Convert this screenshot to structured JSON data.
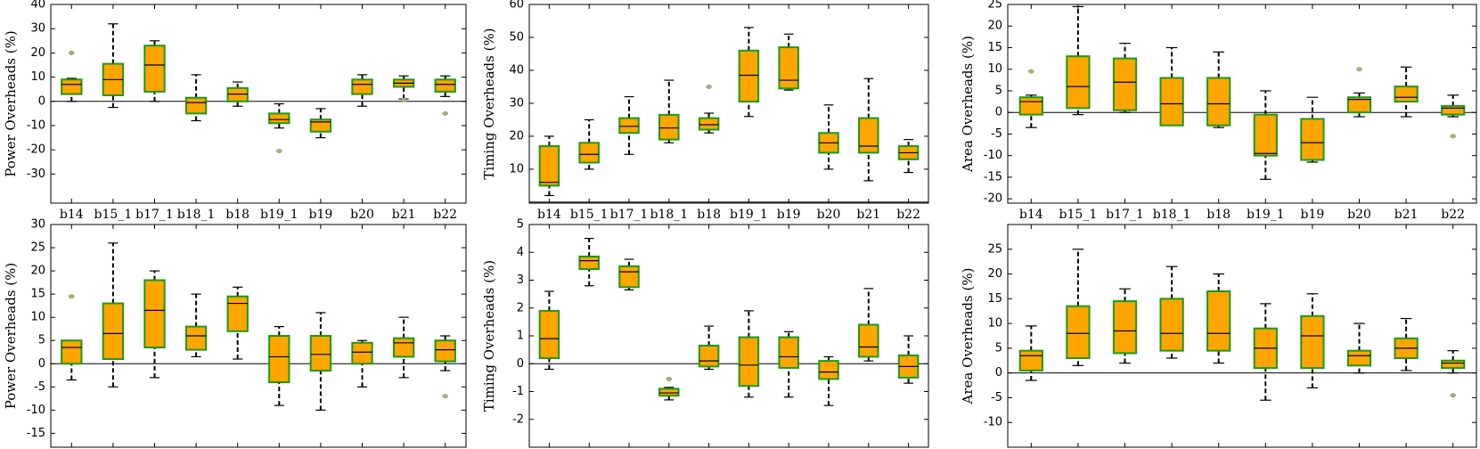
{
  "chart_data": [
    {
      "type": "box",
      "ylabel": "Power Overheads (%)",
      "ylim": [
        -42,
        40
      ],
      "yticks": [
        -30,
        -20,
        -10,
        0,
        10,
        20,
        30,
        40
      ],
      "reference_line": 0,
      "box_color": "#ffa500",
      "edge_color": "#1a9a1a",
      "outlier_color": "#b0b070",
      "categories": [
        "b14",
        "b15_1",
        "b17_1",
        "b18_1",
        "b18",
        "b19_1",
        "b19",
        "b20",
        "b21",
        "b22"
      ],
      "boxes": [
        {
          "min": 0,
          "q1": 3,
          "median": 7,
          "q3": 9,
          "max": 9.5,
          "outliers": [
            20
          ]
        },
        {
          "min": -2.5,
          "q1": 2.5,
          "median": 9,
          "q3": 15.5,
          "max": 32,
          "outliers": []
        },
        {
          "min": 0,
          "q1": 4,
          "median": 15,
          "q3": 23,
          "max": 25,
          "outliers": []
        },
        {
          "min": -8,
          "q1": -5,
          "median": -0.5,
          "q3": 1.5,
          "max": 11,
          "outliers": []
        },
        {
          "min": -2,
          "q1": 0,
          "median": 3,
          "q3": 5.5,
          "max": 8,
          "outliers": []
        },
        {
          "min": -11,
          "q1": -9,
          "median": -7.5,
          "q3": -5,
          "max": -1,
          "outliers": [
            -20.5
          ]
        },
        {
          "min": -15,
          "q1": -12.5,
          "median": -8.5,
          "q3": -7.5,
          "max": -3,
          "outliers": []
        },
        {
          "min": -2,
          "q1": 3,
          "median": 7,
          "q3": 9,
          "max": 11,
          "outliers": []
        },
        {
          "min": 1,
          "q1": 6,
          "median": 7.5,
          "q3": 9,
          "max": 10.5,
          "outliers": [
            0.5
          ]
        },
        {
          "min": 2,
          "q1": 4,
          "median": 7,
          "q3": 9,
          "max": 10.5,
          "outliers": [
            -5
          ]
        }
      ]
    },
    {
      "type": "box",
      "ylabel": "Timing Overheads (%)",
      "ylim": [
        -0.3,
        60
      ],
      "yticks": [
        10,
        20,
        30,
        40,
        50,
        60
      ],
      "reference_line": 0,
      "box_color": "#ffa500",
      "edge_color": "#1a9a1a",
      "outlier_color": "#b0b070",
      "categories": [
        "b14",
        "b15_1",
        "b17_1",
        "b18_1",
        "b18",
        "b19_1",
        "b19",
        "b20",
        "b21",
        "b22"
      ],
      "boxes": [
        {
          "min": 2,
          "q1": 5,
          "median": 6,
          "q3": 17,
          "max": 20,
          "outliers": []
        },
        {
          "min": 10,
          "q1": 12,
          "median": 14.5,
          "q3": 18,
          "max": 25,
          "outliers": []
        },
        {
          "min": 14.5,
          "q1": 21,
          "median": 23,
          "q3": 25.5,
          "max": 32,
          "outliers": []
        },
        {
          "min": 18,
          "q1": 19,
          "median": 22.5,
          "q3": 26.5,
          "max": 37,
          "outliers": []
        },
        {
          "min": 21,
          "q1": 22,
          "median": 23.5,
          "q3": 25.5,
          "max": 27,
          "outliers": [
            35
          ]
        },
        {
          "min": 26,
          "q1": 30.5,
          "median": 38.5,
          "q3": 46,
          "max": 53,
          "outliers": []
        },
        {
          "min": 34,
          "q1": 34.5,
          "median": 37,
          "q3": 47,
          "max": 51,
          "outliers": []
        },
        {
          "min": 10,
          "q1": 15,
          "median": 18,
          "q3": 21,
          "max": 29.5,
          "outliers": []
        },
        {
          "min": 6.5,
          "q1": 15,
          "median": 17,
          "q3": 25.5,
          "max": 37.5,
          "outliers": []
        },
        {
          "min": 9,
          "q1": 13,
          "median": 15,
          "q3": 17,
          "max": 19,
          "outliers": []
        }
      ]
    },
    {
      "type": "box",
      "ylabel": "Area Overheads (%)",
      "ylim": [
        -21,
        25
      ],
      "yticks": [
        -20,
        -15,
        -10,
        -5,
        0,
        5,
        10,
        15,
        20,
        25
      ],
      "reference_line": 0,
      "box_color": "#ffa500",
      "edge_color": "#1a9a1a",
      "outlier_color": "#b0b070",
      "categories": [
        "b14",
        "b15_1",
        "b17_1",
        "b18_1",
        "b18",
        "b19_1",
        "b19",
        "b20",
        "b21",
        "b22"
      ],
      "boxes": [
        {
          "min": -3.5,
          "q1": -0.5,
          "median": 2.5,
          "q3": 3.5,
          "max": 4,
          "outliers": [
            9.5
          ]
        },
        {
          "min": -0.5,
          "q1": 1,
          "median": 6,
          "q3": 13,
          "max": 24.5,
          "outliers": []
        },
        {
          "min": 0,
          "q1": 0.5,
          "median": 7,
          "q3": 12.5,
          "max": 16,
          "outliers": []
        },
        {
          "min": -3,
          "q1": -3,
          "median": 2,
          "q3": 8,
          "max": 15,
          "outliers": []
        },
        {
          "min": -3.5,
          "q1": -3,
          "median": 2,
          "q3": 8,
          "max": 14,
          "outliers": []
        },
        {
          "min": -15.5,
          "q1": -10,
          "median": -9.5,
          "q3": -0.5,
          "max": 5,
          "outliers": []
        },
        {
          "min": -11.5,
          "q1": -11,
          "median": -7,
          "q3": -1.5,
          "max": 3.5,
          "outliers": []
        },
        {
          "min": -1,
          "q1": 0,
          "median": 3,
          "q3": 3.5,
          "max": 4.5,
          "outliers": [
            10
          ]
        },
        {
          "min": -1,
          "q1": 2.5,
          "median": 3.5,
          "q3": 6,
          "max": 10.5,
          "outliers": []
        },
        {
          "min": -1,
          "q1": -0.5,
          "median": 1,
          "q3": 1.5,
          "max": 4,
          "outliers": [
            -5.5
          ]
        }
      ]
    },
    {
      "type": "box",
      "ylabel": "Power Overheads (%)",
      "ylim": [
        -18,
        30
      ],
      "yticks": [
        -15,
        -10,
        -5,
        0,
        5,
        10,
        15,
        20,
        25,
        30
      ],
      "reference_line": 0,
      "box_color": "#ffa500",
      "edge_color": "#1a9a1a",
      "outlier_color": "#b0b070",
      "categories": [
        null,
        null,
        null,
        null,
        null,
        null,
        null,
        null,
        null,
        null
      ],
      "boxes": [
        {
          "min": -3.5,
          "q1": 0,
          "median": 3.5,
          "q3": 5,
          "max": 5,
          "outliers": [
            14.5
          ]
        },
        {
          "min": -5,
          "q1": 1,
          "median": 6.5,
          "q3": 13,
          "max": 26,
          "outliers": []
        },
        {
          "min": -3,
          "q1": 3.5,
          "median": 11.5,
          "q3": 18,
          "max": 20,
          "outliers": []
        },
        {
          "min": 1.5,
          "q1": 3,
          "median": 6,
          "q3": 8,
          "max": 15,
          "outliers": []
        },
        {
          "min": 1,
          "q1": 7,
          "median": 13,
          "q3": 14.5,
          "max": 16.5,
          "outliers": []
        },
        {
          "min": -9,
          "q1": -4,
          "median": 1.5,
          "q3": 6,
          "max": 8,
          "outliers": []
        },
        {
          "min": -10,
          "q1": -1.5,
          "median": 2,
          "q3": 6,
          "max": 11,
          "outliers": []
        },
        {
          "min": -5,
          "q1": 0,
          "median": 2.5,
          "q3": 4.5,
          "max": 5,
          "outliers": []
        },
        {
          "min": -3,
          "q1": 1.5,
          "median": 4.5,
          "q3": 5.5,
          "max": 10,
          "outliers": []
        },
        {
          "min": -1.5,
          "q1": 0.5,
          "median": 3,
          "q3": 5,
          "max": 6,
          "outliers": [
            -7
          ]
        }
      ]
    },
    {
      "type": "box",
      "ylabel": "Timing Overheads (%)",
      "ylim": [
        -3,
        5
      ],
      "yticks": [
        -2,
        -1,
        0,
        1,
        2,
        3,
        4,
        5
      ],
      "reference_line": 0,
      "box_color": "#ffa500",
      "edge_color": "#1a9a1a",
      "outlier_color": "#b0b070",
      "categories": [
        null,
        null,
        null,
        null,
        null,
        null,
        null,
        null,
        null,
        null
      ],
      "boxes": [
        {
          "min": -0.2,
          "q1": 0.2,
          "median": 0.9,
          "q3": 1.9,
          "max": 2.6,
          "outliers": []
        },
        {
          "min": 2.8,
          "q1": 3.4,
          "median": 3.7,
          "q3": 3.85,
          "max": 4.5,
          "outliers": []
        },
        {
          "min": 2.65,
          "q1": 2.75,
          "median": 3.3,
          "q3": 3.5,
          "max": 3.75,
          "outliers": []
        },
        {
          "min": -1.3,
          "q1": -1.15,
          "median": -1.05,
          "q3": -0.9,
          "max": -0.85,
          "outliers": [
            -0.55
          ]
        },
        {
          "min": -0.2,
          "q1": -0.1,
          "median": 0.1,
          "q3": 0.65,
          "max": 1.35,
          "outliers": []
        },
        {
          "min": -1.2,
          "q1": -0.8,
          "median": -0.05,
          "q3": 0.95,
          "max": 1.9,
          "outliers": []
        },
        {
          "min": -1.2,
          "q1": -0.15,
          "median": 0.25,
          "q3": 0.95,
          "max": 1.15,
          "outliers": []
        },
        {
          "min": -1.5,
          "q1": -0.55,
          "median": -0.3,
          "q3": 0.1,
          "max": 0.25,
          "outliers": []
        },
        {
          "min": 0.1,
          "q1": 0.25,
          "median": 0.6,
          "q3": 1.4,
          "max": 2.7,
          "outliers": []
        },
        {
          "min": -0.7,
          "q1": -0.5,
          "median": -0.1,
          "q3": 0.3,
          "max": 1,
          "outliers": []
        }
      ]
    },
    {
      "type": "box",
      "ylabel": "Area Overheads (%)",
      "ylim": [
        -15,
        30
      ],
      "yticks": [
        -10,
        -5,
        0,
        5,
        10,
        15,
        20,
        25
      ],
      "reference_line": 0,
      "box_color": "#ffa500",
      "edge_color": "#1a9a1a",
      "outlier_color": "#b0b070",
      "categories": [
        null,
        null,
        null,
        null,
        null,
        null,
        null,
        null,
        null,
        null
      ],
      "boxes": [
        {
          "min": -1.5,
          "q1": 0.5,
          "median": 3.5,
          "q3": 4.5,
          "max": 9.5,
          "outliers": []
        },
        {
          "min": 1.5,
          "q1": 3,
          "median": 8,
          "q3": 13.5,
          "max": 25,
          "outliers": []
        },
        {
          "min": 2,
          "q1": 4,
          "median": 8.5,
          "q3": 14.5,
          "max": 17,
          "outliers": []
        },
        {
          "min": 3,
          "q1": 4.5,
          "median": 8,
          "q3": 15,
          "max": 21.5,
          "outliers": []
        },
        {
          "min": 2,
          "q1": 4.5,
          "median": 8,
          "q3": 16.5,
          "max": 20,
          "outliers": []
        },
        {
          "min": -5.5,
          "q1": 1,
          "median": 5,
          "q3": 9,
          "max": 14,
          "outliers": []
        },
        {
          "min": -3,
          "q1": 1,
          "median": 7.5,
          "q3": 11.5,
          "max": 16,
          "outliers": []
        },
        {
          "min": 0,
          "q1": 1.5,
          "median": 3.5,
          "q3": 4.5,
          "max": 10,
          "outliers": []
        },
        {
          "min": 0.5,
          "q1": 3,
          "median": 5,
          "q3": 7,
          "max": 11,
          "outliers": []
        },
        {
          "min": 0,
          "q1": 1,
          "median": 2,
          "q3": 2.5,
          "max": 4.5,
          "outliers": [
            -4.5
          ]
        }
      ]
    }
  ]
}
